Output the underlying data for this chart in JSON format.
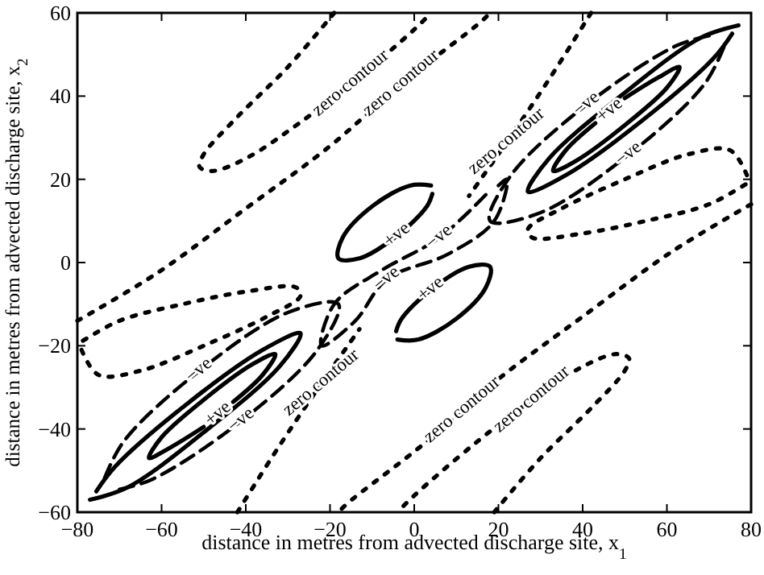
{
  "chart_data": {
    "type": "line",
    "xlabel": "distance in metres from advected discharge site, x$_{1}$",
    "ylabel": "distance in metres from advected discharge site, x$_{2}$",
    "xlim": [
      -80,
      80
    ],
    "ylim": [
      -60,
      60
    ],
    "xticks": [
      -80,
      -60,
      -40,
      -20,
      0,
      20,
      40,
      60,
      80
    ],
    "yticks": [
      -60,
      -40,
      -20,
      0,
      20,
      40,
      60
    ],
    "series": [
      {
        "color": "#000000",
        "line_style": "solid",
        "x": [
          77,
          68,
          49,
          32,
          27,
          36,
          54,
          71,
          75.5
        ],
        "values": [
          57,
          54,
          40,
          25,
          17,
          21,
          34,
          49,
          55
        ]
      },
      {
        "color": "#000000",
        "line_style": "solid",
        "x": [
          43,
          36,
          33,
          38.5,
          50,
          60,
          63,
          58,
          50
        ],
        "values": [
          33.5,
          27,
          22,
          24.5,
          33,
          42,
          47,
          44.5,
          39.5
        ]
      },
      {
        "color": "#000000",
        "line_style": "solid",
        "x": [
          -77,
          -68,
          -49,
          -32,
          -27,
          -36,
          -54,
          -71,
          -75.5
        ],
        "values": [
          -57,
          -54,
          -40,
          -25,
          -17,
          -21,
          -34,
          -49,
          -55
        ]
      },
      {
        "color": "#000000",
        "line_style": "solid",
        "x": [
          -43,
          -36,
          -33,
          -38.5,
          -50,
          -60,
          -63,
          -58,
          -50
        ],
        "values": [
          -33.5,
          -27,
          -22,
          -24.5,
          -33,
          -42,
          -47,
          -44.5,
          -39.5
        ]
      },
      {
        "color": "#000000",
        "line_style": "solid",
        "x": [
          4,
          -1,
          -10,
          -17,
          -18,
          -13,
          -4,
          3,
          4.3
        ],
        "values": [
          18.5,
          18.5,
          13.5,
          6,
          1,
          1,
          6.5,
          13.5,
          16.5
        ]
      },
      {
        "color": "#000000",
        "line_style": "solid",
        "x": [
          -4,
          1,
          10,
          17,
          18,
          13,
          4,
          -3,
          -4.3
        ],
        "values": [
          -18.5,
          -18.5,
          -13.5,
          -6,
          -1,
          -1,
          -6.5,
          -13.5,
          -16.5
        ]
      },
      {
        "color": "#000000",
        "line_style": "dashed",
        "x": [
          70,
          62,
          41,
          23,
          18,
          30,
          51,
          69,
          74
        ],
        "values": [
          54.5,
          52,
          38,
          21,
          10,
          12,
          26,
          43,
          53
        ]
      },
      {
        "color": "#000000",
        "line_style": "dashed",
        "x": [
          -70,
          -62,
          -41,
          -23,
          -18,
          -30,
          -51,
          -69,
          -74
        ],
        "values": [
          -54.5,
          -52,
          -38,
          -21,
          -10,
          -12,
          -26,
          -43,
          -53
        ]
      },
      {
        "color": "#000000",
        "line_style": "dashed",
        "x": [
          17,
          6,
          -8,
          -19,
          -22,
          -14,
          -6.5,
          8,
          19,
          22,
          20
        ],
        "values": [
          16.3,
          6,
          -2,
          -10,
          -20,
          -14,
          -4,
          2,
          10,
          20,
          18.5
        ]
      },
      {
        "color": "#000000",
        "line_style": "dotted",
        "x": [
          -19,
          -30,
          -42,
          -50,
          -51,
          -48,
          -40,
          -28,
          -15,
          0,
          4
        ],
        "values": [
          60,
          47,
          35,
          26,
          23,
          22,
          25,
          33,
          43,
          56,
          60
        ]
      },
      {
        "color": "#000000",
        "line_style": "dotted",
        "x": [
          19,
          30,
          42,
          50,
          51,
          48,
          40,
          28,
          15,
          0,
          -4
        ],
        "values": [
          -60,
          -47,
          -35,
          -26,
          -23,
          -22,
          -25,
          -33,
          -43,
          -56,
          -60
        ]
      },
      {
        "color": "#000000",
        "line_style": "dotted",
        "x": [
          -80,
          -61,
          -40,
          -20,
          -3,
          16,
          18
        ],
        "values": [
          -14,
          -2.5,
          13,
          28,
          43,
          58,
          60
        ]
      },
      {
        "color": "#000000",
        "line_style": "dotted",
        "x": [
          80,
          61,
          40,
          20,
          3,
          -16,
          -18
        ],
        "values": [
          14,
          2.5,
          -13,
          -28,
          -43,
          -58,
          -60
        ]
      },
      {
        "color": "#000000",
        "line_style": "dotted",
        "x": [
          -79,
          -75,
          -65,
          -50,
          -35,
          -27,
          -28,
          -40,
          -55,
          -70,
          -79
        ],
        "values": [
          -21,
          -27,
          -26,
          -20,
          -13,
          -8,
          -6,
          -7,
          -10,
          -14,
          -19
        ]
      },
      {
        "color": "#000000",
        "line_style": "dotted",
        "x": [
          79,
          75,
          65,
          50,
          35,
          27,
          28,
          40,
          55,
          70,
          79
        ],
        "values": [
          21,
          27,
          26,
          20,
          13,
          8,
          6,
          7,
          10,
          14,
          19
        ]
      },
      {
        "color": "#000000",
        "line_style": "dotted",
        "x": [
          -42,
          -32,
          -22,
          -13
        ],
        "values": [
          -60,
          -44,
          -29,
          -16
        ]
      },
      {
        "color": "#000000",
        "line_style": "dotted",
        "x": [
          42,
          32,
          22,
          13
        ],
        "values": [
          60,
          44,
          29,
          16
        ]
      }
    ],
    "annotations": [
      {
        "text": "zero contour",
        "x": -15,
        "y": 43
      },
      {
        "text": "zero contour",
        "x": -3,
        "y": 43
      },
      {
        "text": "zero contour",
        "x": 22,
        "y": 29
      },
      {
        "text": "zero contour",
        "x": -22,
        "y": -29
      },
      {
        "text": "zero contour",
        "x": 11.5,
        "y": -35.5
      },
      {
        "text": "zero contour",
        "x": 28,
        "y": -33
      },
      {
        "text": "−ve",
        "x": 41,
        "y": 38
      },
      {
        "text": "+ve",
        "x": 46.5,
        "y": 36.5
      },
      {
        "text": "−ve",
        "x": 51,
        "y": 26
      },
      {
        "text": "−ve",
        "x": -51,
        "y": -26
      },
      {
        "text": "+ve",
        "x": -46.5,
        "y": -36.5
      },
      {
        "text": "−ve",
        "x": -41,
        "y": -38
      },
      {
        "text": "+ve",
        "x": -4,
        "y": 6.5
      },
      {
        "text": "+ve",
        "x": 4,
        "y": -6.5
      },
      {
        "text": "−ve",
        "x": 6,
        "y": 6
      },
      {
        "text": "−ve",
        "x": -6.5,
        "y": -4
      }
    ]
  }
}
